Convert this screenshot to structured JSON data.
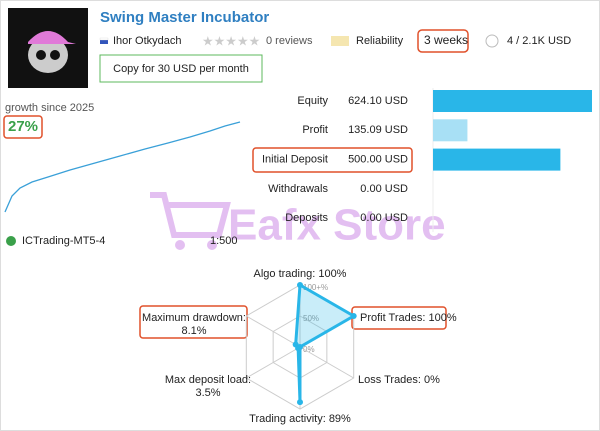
{
  "header": {
    "title": "Swing Master Incubator",
    "author": "Ihor Otkydach",
    "reviews": "0 reviews",
    "reliability": "Reliability",
    "age": "3 weeks",
    "subscribers": "4 / 2.1K USD",
    "copy_button": "Copy for 30 USD per month"
  },
  "growth": {
    "label": "growth since 2025",
    "value": "27%"
  },
  "account": {
    "server": "ICTrading-MT5-4",
    "leverage": "1:500"
  },
  "stats": [
    {
      "label": "Equity",
      "value": 624.1,
      "value_label": "624.10 USD",
      "color": "#29b6e8"
    },
    {
      "label": "Profit",
      "value": 135.09,
      "value_label": "135.09 USD",
      "color": "#a8e0f5"
    },
    {
      "label": "Initial Deposit",
      "value": 500,
      "value_label": "500.00 USD",
      "color": "#29b6e8"
    },
    {
      "label": "Withdrawals",
      "value": 0,
      "value_label": "0.00 USD",
      "color": "#29b6e8"
    },
    {
      "label": "Deposits",
      "value": 0,
      "value_label": "0.00 USD",
      "color": "#29b6e8"
    }
  ],
  "radar": {
    "rlim": [
      0,
      100
    ],
    "color": "#29b6e8",
    "axes": [
      {
        "label": "Algo trading: 100%",
        "value": 100
      },
      {
        "label": "Profit Trades: 100%",
        "value": 100
      },
      {
        "label": "Loss Trades: 0%",
        "value": 0
      },
      {
        "label": "Trading activity: 89%",
        "value": 89
      },
      {
        "label": [
          "Max deposit load:",
          "3.5%"
        ],
        "value": 3.5
      },
      {
        "label": [
          "Maximum drawdown:",
          "8.1%"
        ],
        "value": 8.1
      }
    ],
    "ticks": [
      {
        "value": 100,
        "label": "100+%"
      },
      {
        "value": 50,
        "label": "50%"
      },
      {
        "value": 0,
        "label": "0%"
      }
    ]
  },
  "watermark": "Eafx Store"
}
